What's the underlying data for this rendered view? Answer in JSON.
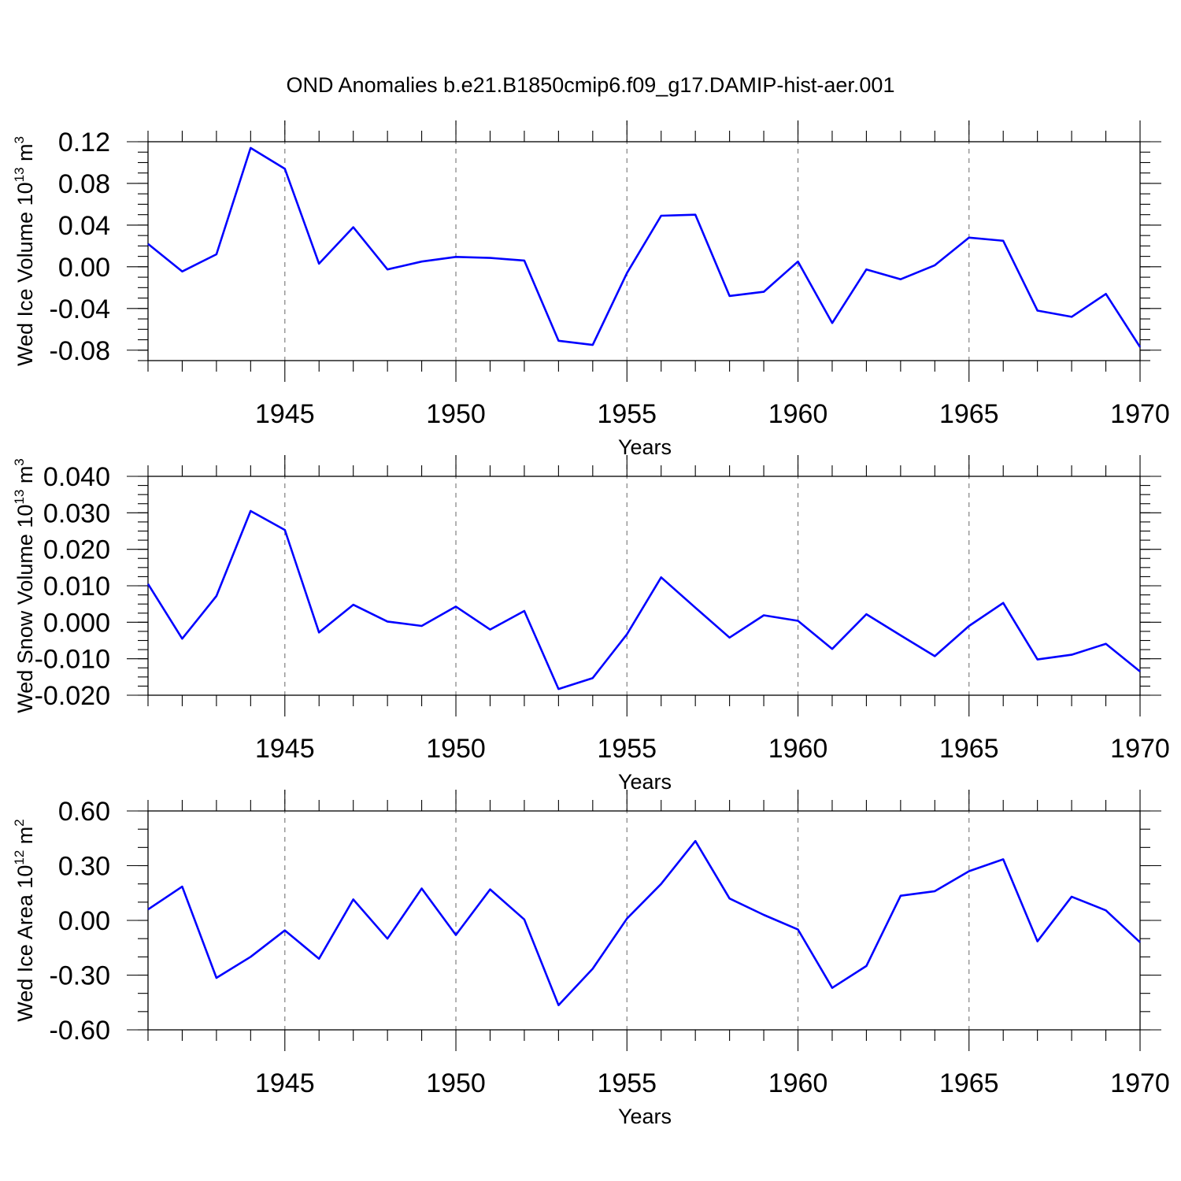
{
  "title": "OND Anomalies b.e21.B1850cmip6.f09_g17.DAMIP-hist-aer.001",
  "colors": {
    "series": "#0000ff",
    "grid": "#808080",
    "axes": "#000000"
  },
  "chart_data": [
    {
      "type": "line",
      "xlabel": "Years",
      "ylabel": "Wed Ice Volume 10",
      "ylabel_exp": "13",
      "ylabel_unit": "m",
      "ylabel_unit_exp": "3",
      "xlim": [
        1941,
        1970
      ],
      "ylim": [
        -0.09,
        0.12
      ],
      "yticks": [
        0.12,
        0.08,
        0.04,
        0.0,
        -0.04,
        -0.08
      ],
      "ytick_labels": [
        "0.12",
        "0.08",
        "0.04",
        "0.00",
        "-0.04",
        "-0.08"
      ],
      "y_minor_step": 0.01,
      "xticks": [
        1945,
        1950,
        1955,
        1960,
        1965,
        1970
      ],
      "xtick_labels": [
        "1945",
        "1950",
        "1955",
        "1960",
        "1965",
        "1970"
      ],
      "grid": "x-dashed",
      "x": [
        1941,
        1942,
        1943,
        1944,
        1945,
        1946,
        1947,
        1948,
        1949,
        1950,
        1951,
        1952,
        1953,
        1954,
        1955,
        1956,
        1957,
        1958,
        1959,
        1960,
        1961,
        1962,
        1963,
        1964,
        1965,
        1966,
        1967,
        1968,
        1969,
        1970
      ],
      "y": [
        0.022,
        -0.0045,
        0.012,
        0.114,
        0.094,
        0.003,
        0.038,
        -0.0025,
        0.005,
        0.0095,
        0.0085,
        0.006,
        -0.071,
        -0.075,
        -0.006,
        0.049,
        0.05,
        -0.028,
        -0.024,
        0.005,
        -0.054,
        -0.0025,
        -0.012,
        0.0015,
        0.028,
        0.025,
        -0.042,
        -0.048,
        -0.026,
        -0.077
      ]
    },
    {
      "type": "line",
      "xlabel": "Years",
      "ylabel": "Wed Snow Volume 10",
      "ylabel_exp": "13",
      "ylabel_unit": "m",
      "ylabel_unit_exp": "3",
      "xlim": [
        1941,
        1970
      ],
      "ylim": [
        -0.02,
        0.04
      ],
      "yticks": [
        0.04,
        0.03,
        0.02,
        0.01,
        0.0,
        -0.01,
        -0.02
      ],
      "ytick_labels": [
        "0.040",
        "0.030",
        "0.020",
        "0.010",
        "0.000",
        "-0.010",
        "-0.020"
      ],
      "y_minor_step": 0.0025,
      "xticks": [
        1945,
        1950,
        1955,
        1960,
        1965,
        1970
      ],
      "xtick_labels": [
        "1945",
        "1950",
        "1955",
        "1960",
        "1965",
        "1970"
      ],
      "grid": "x-dashed",
      "x": [
        1941,
        1942,
        1943,
        1944,
        1945,
        1946,
        1947,
        1948,
        1949,
        1950,
        1951,
        1952,
        1953,
        1954,
        1955,
        1956,
        1957,
        1958,
        1959,
        1960,
        1961,
        1962,
        1963,
        1964,
        1965,
        1966,
        1967,
        1968,
        1969,
        1970
      ],
      "y": [
        0.0105,
        -0.0045,
        0.0072,
        0.0305,
        0.0253,
        -0.0028,
        0.0048,
        0.0002,
        -0.001,
        0.0043,
        -0.002,
        0.0031,
        -0.0183,
        -0.0153,
        -0.0033,
        0.0123,
        0.004,
        -0.0042,
        0.0019,
        0.0004,
        -0.0073,
        0.0022,
        -0.0036,
        -0.0093,
        -0.001,
        0.0053,
        -0.0102,
        -0.0089,
        -0.0059,
        -0.0135
      ]
    },
    {
      "type": "line",
      "xlabel": "Years",
      "ylabel": "Wed Ice Area 10",
      "ylabel_exp": "12",
      "ylabel_unit": "m",
      "ylabel_unit_exp": "2",
      "xlim": [
        1941,
        1970
      ],
      "ylim": [
        -0.6,
        0.6
      ],
      "yticks": [
        0.6,
        0.3,
        0.0,
        -0.3,
        -0.6
      ],
      "ytick_labels": [
        "0.60",
        "0.30",
        "0.00",
        "-0.30",
        "-0.60"
      ],
      "y_minor_step": 0.1,
      "xticks": [
        1945,
        1950,
        1955,
        1960,
        1965,
        1970
      ],
      "xtick_labels": [
        "1945",
        "1950",
        "1955",
        "1960",
        "1965",
        "1970"
      ],
      "grid": "x-dashed",
      "x": [
        1941,
        1942,
        1943,
        1944,
        1945,
        1946,
        1947,
        1948,
        1949,
        1950,
        1951,
        1952,
        1953,
        1954,
        1955,
        1956,
        1957,
        1958,
        1959,
        1960,
        1961,
        1962,
        1963,
        1964,
        1965,
        1966,
        1967,
        1968,
        1969,
        1970
      ],
      "y": [
        0.06,
        0.185,
        -0.315,
        -0.2,
        -0.055,
        -0.21,
        0.115,
        -0.1,
        0.175,
        -0.08,
        0.17,
        0.005,
        -0.465,
        -0.265,
        0.01,
        0.2,
        0.435,
        0.12,
        0.03,
        -0.05,
        -0.37,
        -0.25,
        0.135,
        0.16,
        0.27,
        0.335,
        -0.115,
        0.13,
        0.055,
        -0.12
      ]
    }
  ]
}
